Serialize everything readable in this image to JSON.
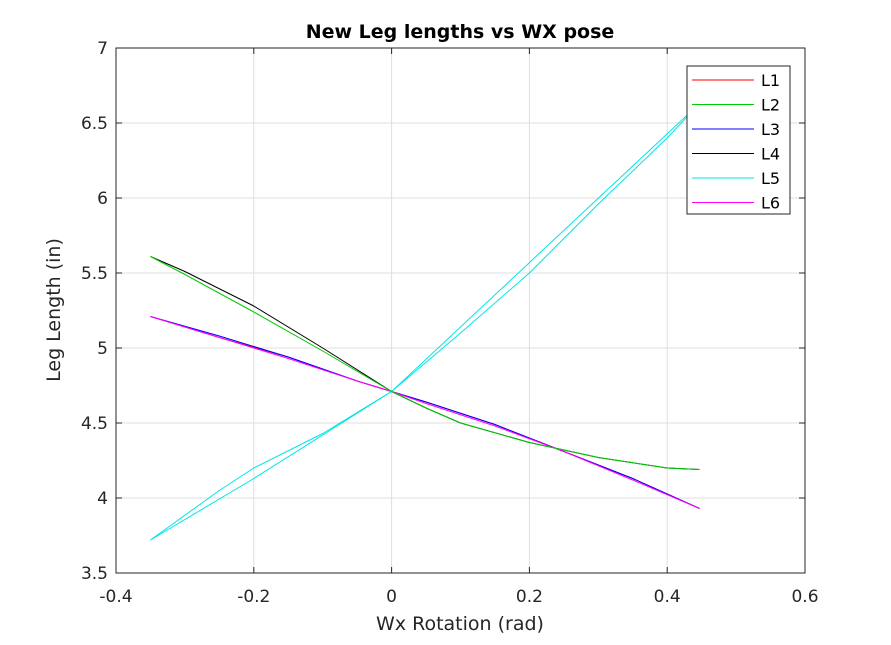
{
  "chart_data": {
    "type": "line",
    "title": "New Leg lengths vs WX pose",
    "xlabel": "Wx Rotation (rad)",
    "ylabel": "Leg Length (in)",
    "xlim": [
      -0.4,
      0.6
    ],
    "ylim": [
      3.5,
      7
    ],
    "xticks": [
      -0.4,
      -0.2,
      0,
      0.2,
      0.4,
      0.6
    ],
    "xtick_labels": [
      "-0.4",
      "-0.2",
      "0",
      "0.2",
      "0.4",
      "0.6"
    ],
    "yticks": [
      3.5,
      4,
      4.5,
      5,
      5.5,
      6,
      6.5,
      7
    ],
    "ytick_labels": [
      "3.5",
      "4",
      "4.5",
      "5",
      "5.5",
      "6",
      "6.5",
      "7"
    ],
    "grid": true,
    "legend_position": "top-right",
    "series": [
      {
        "name": "L1",
        "color": "#ff0000",
        "x": [
          -0.35,
          -0.25,
          -0.15,
          -0.05,
          0,
          0.05,
          0.15,
          0.25,
          0.35,
          0.447
        ],
        "y": [
          5.21,
          5.07,
          4.94,
          4.78,
          4.71,
          4.64,
          4.49,
          4.31,
          4.13,
          3.93
        ]
      },
      {
        "name": "L2",
        "color": "#00cc00",
        "x": [
          -0.35,
          -0.3,
          -0.2,
          -0.1,
          0,
          0.05,
          0.1,
          0.2,
          0.3,
          0.4,
          0.447
        ],
        "y": [
          5.61,
          5.49,
          5.24,
          4.98,
          4.71,
          4.6,
          4.5,
          4.37,
          4.27,
          4.2,
          4.19
        ]
      },
      {
        "name": "L3",
        "color": "#0000ff",
        "x": [
          -0.35,
          -0.25,
          -0.15,
          -0.05,
          0,
          0.05,
          0.15,
          0.25,
          0.35,
          0.447
        ],
        "y": [
          5.21,
          5.08,
          4.94,
          4.78,
          4.71,
          4.64,
          4.49,
          4.31,
          4.13,
          3.93
        ]
      },
      {
        "name": "L4",
        "color": "#000000",
        "x": [
          -0.35,
          -0.3,
          -0.2,
          -0.1,
          0,
          0.05,
          0.1,
          0.2,
          0.3,
          0.4,
          0.447
        ],
        "y": [
          5.61,
          5.51,
          5.28,
          5.0,
          4.71,
          4.6,
          4.5,
          4.37,
          4.27,
          4.2,
          4.19
        ]
      },
      {
        "name": "L5",
        "color": "#00e5e5",
        "x": [
          -0.35,
          -0.25,
          -0.2,
          -0.1,
          0,
          0.1,
          0.2,
          0.3,
          0.4,
          0.447
        ],
        "y": [
          3.72,
          4.05,
          4.2,
          4.43,
          4.71,
          5.1,
          5.5,
          5.96,
          6.4,
          6.63
        ]
      },
      {
        "name": "L6",
        "color": "#ff00ff",
        "x": [
          -0.35,
          -0.25,
          -0.15,
          -0.05,
          0,
          0.05,
          0.15,
          0.25,
          0.35,
          0.447
        ],
        "y": [
          5.21,
          5.07,
          4.93,
          4.78,
          4.71,
          4.63,
          4.48,
          4.31,
          4.12,
          3.93
        ]
      },
      {
        "name": "",
        "color": "#00e5e5",
        "x": [
          -0.35,
          -0.2,
          0,
          0.447
        ],
        "y": [
          3.72,
          4.13,
          4.71,
          6.63
        ]
      }
    ]
  }
}
